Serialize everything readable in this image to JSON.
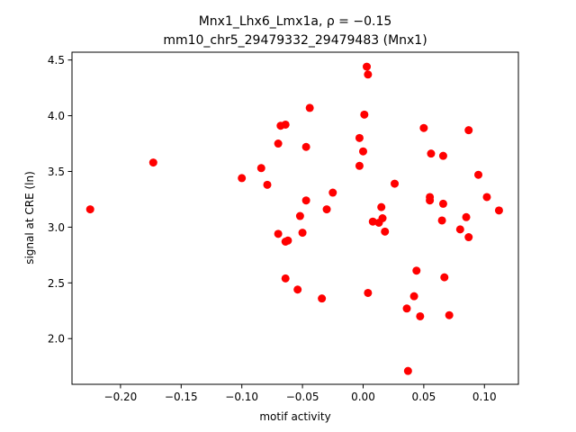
{
  "chart_data": {
    "type": "scatter",
    "title_line1": "Mnx1_Lhx6_Lmx1a, ρ = −0.15",
    "title_line2": "mm10_chr5_29479332_29479483 (Mnx1)",
    "xlabel": "motif activity",
    "ylabel": "signal at CRE (ln)",
    "xlim": [
      -0.24,
      0.128
    ],
    "ylim": [
      1.59,
      4.57
    ],
    "xticks": [
      -0.2,
      -0.15,
      -0.1,
      -0.05,
      0.0,
      0.05,
      0.1
    ],
    "xtick_labels": [
      "−0.20",
      "−0.15",
      "−0.10",
      "−0.05",
      "0.00",
      "0.05",
      "0.10"
    ],
    "yticks": [
      2.0,
      2.5,
      3.0,
      3.5,
      4.0,
      4.5
    ],
    "ytick_labels": [
      "2.0",
      "2.5",
      "3.0",
      "3.5",
      "4.0",
      "4.5"
    ],
    "grid": false,
    "marker_color": "#ff0000",
    "points": [
      [
        -0.225,
        3.16
      ],
      [
        -0.173,
        3.58
      ],
      [
        -0.1,
        3.44
      ],
      [
        -0.084,
        3.53
      ],
      [
        -0.079,
        3.38
      ],
      [
        -0.07,
        3.75
      ],
      [
        -0.07,
        2.94
      ],
      [
        -0.068,
        3.91
      ],
      [
        -0.064,
        3.92
      ],
      [
        -0.064,
        2.54
      ],
      [
        -0.064,
        2.87
      ],
      [
        -0.062,
        2.88
      ],
      [
        -0.054,
        2.44
      ],
      [
        -0.052,
        3.1
      ],
      [
        -0.05,
        2.95
      ],
      [
        -0.047,
        3.72
      ],
      [
        -0.047,
        3.24
      ],
      [
        -0.044,
        4.07
      ],
      [
        -0.034,
        2.36
      ],
      [
        -0.03,
        3.16
      ],
      [
        -0.025,
        3.31
      ],
      [
        -0.003,
        3.8
      ],
      [
        -0.003,
        3.55
      ],
      [
        0.0,
        3.68
      ],
      [
        0.001,
        4.01
      ],
      [
        0.003,
        4.44
      ],
      [
        0.004,
        4.37
      ],
      [
        0.004,
        2.41
      ],
      [
        0.008,
        3.05
      ],
      [
        0.013,
        3.04
      ],
      [
        0.015,
        3.18
      ],
      [
        0.016,
        3.08
      ],
      [
        0.018,
        2.96
      ],
      [
        0.026,
        3.39
      ],
      [
        0.036,
        2.27
      ],
      [
        0.037,
        1.71
      ],
      [
        0.042,
        2.38
      ],
      [
        0.044,
        2.61
      ],
      [
        0.047,
        2.2
      ],
      [
        0.05,
        3.89
      ],
      [
        0.055,
        3.24
      ],
      [
        0.055,
        3.27
      ],
      [
        0.056,
        3.66
      ],
      [
        0.065,
        3.06
      ],
      [
        0.066,
        3.21
      ],
      [
        0.066,
        3.64
      ],
      [
        0.067,
        2.55
      ],
      [
        0.071,
        2.21
      ],
      [
        0.08,
        2.98
      ],
      [
        0.085,
        3.09
      ],
      [
        0.087,
        2.91
      ],
      [
        0.087,
        3.87
      ],
      [
        0.095,
        3.47
      ],
      [
        0.102,
        3.27
      ],
      [
        0.112,
        3.15
      ]
    ]
  }
}
